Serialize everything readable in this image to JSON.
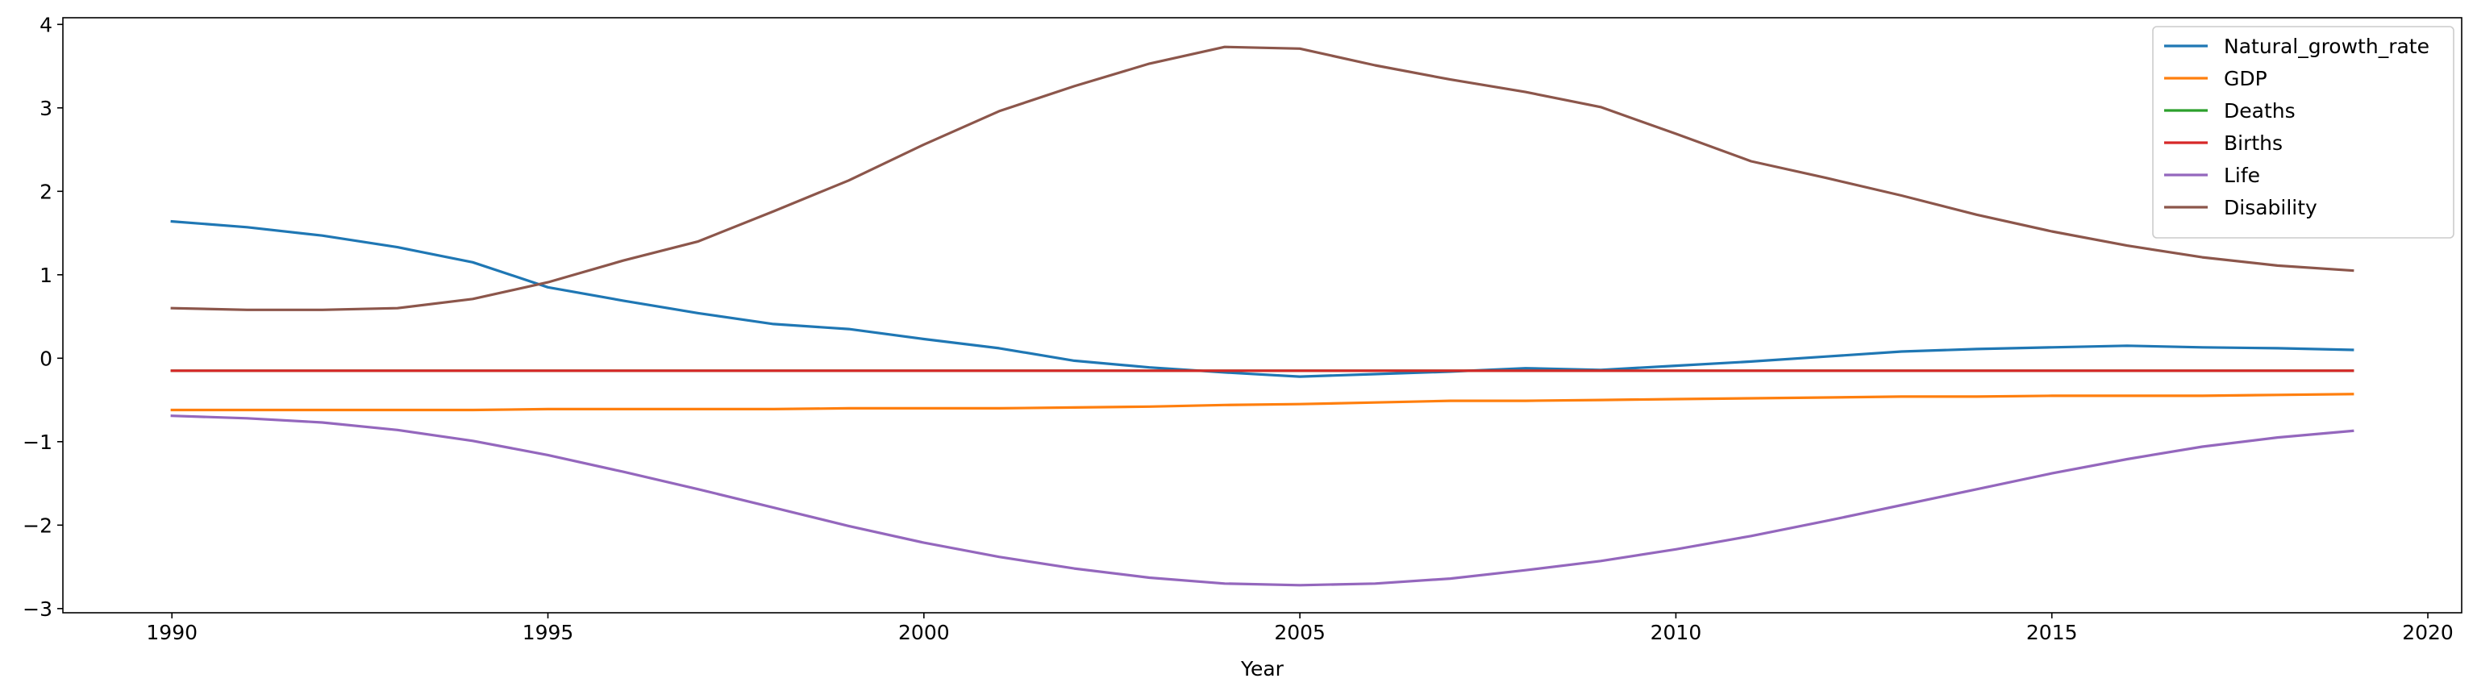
{
  "chart_data": {
    "type": "line",
    "title": "",
    "xlabel": "Year",
    "ylabel": "",
    "xlim": [
      1988.55,
      2020.45
    ],
    "ylim": [
      -3.05,
      4.08
    ],
    "xticks": [
      1990,
      1995,
      2000,
      2005,
      2010,
      2015,
      2020
    ],
    "yticks": [
      -3,
      -2,
      -1,
      0,
      1,
      2,
      3,
      4
    ],
    "ytick_labels": [
      "−3",
      "−2",
      "−1",
      "0",
      "1",
      "2",
      "3",
      "4"
    ],
    "grid": false,
    "legend_position": "upper-right",
    "x": [
      1990,
      1991,
      1992,
      1993,
      1994,
      1995,
      1996,
      1997,
      1998,
      1999,
      2000,
      2001,
      2002,
      2003,
      2004,
      2005,
      2006,
      2007,
      2008,
      2009,
      2010,
      2011,
      2012,
      2013,
      2014,
      2015,
      2016,
      2017,
      2018,
      2019
    ],
    "series": [
      {
        "name": "Natural_growth_rate",
        "color": "#1f77b4",
        "values": [
          1.64,
          1.57,
          1.47,
          1.33,
          1.15,
          0.85,
          0.69,
          0.54,
          0.41,
          0.35,
          0.23,
          0.12,
          -0.03,
          -0.11,
          -0.17,
          -0.22,
          -0.19,
          -0.16,
          -0.12,
          -0.14,
          -0.09,
          -0.04,
          0.02,
          0.08,
          0.11,
          0.13,
          0.15,
          0.13,
          0.12,
          0.1
        ]
      },
      {
        "name": "GDP",
        "color": "#ff7f0e",
        "values": [
          -0.62,
          -0.62,
          -0.62,
          -0.62,
          -0.62,
          -0.61,
          -0.61,
          -0.61,
          -0.61,
          -0.6,
          -0.6,
          -0.6,
          -0.59,
          -0.58,
          -0.56,
          -0.55,
          -0.53,
          -0.51,
          -0.51,
          -0.5,
          -0.49,
          -0.48,
          -0.47,
          -0.46,
          -0.46,
          -0.45,
          -0.45,
          -0.45,
          -0.44,
          -0.43
        ]
      },
      {
        "name": "Deaths",
        "color": "#2ca02c",
        "values": [
          -0.15,
          -0.15,
          -0.15,
          -0.15,
          -0.15,
          -0.15,
          -0.15,
          -0.15,
          -0.15,
          -0.15,
          -0.15,
          -0.15,
          -0.15,
          -0.15,
          -0.15,
          -0.15,
          -0.15,
          -0.15,
          -0.15,
          -0.15,
          -0.15,
          -0.15,
          -0.15,
          -0.15,
          -0.15,
          -0.15,
          -0.15,
          -0.15,
          -0.15,
          -0.15
        ]
      },
      {
        "name": "Births",
        "color": "#d62728",
        "values": [
          -0.15,
          -0.15,
          -0.15,
          -0.15,
          -0.15,
          -0.15,
          -0.15,
          -0.15,
          -0.15,
          -0.15,
          -0.15,
          -0.15,
          -0.15,
          -0.15,
          -0.15,
          -0.15,
          -0.15,
          -0.15,
          -0.15,
          -0.15,
          -0.15,
          -0.15,
          -0.15,
          -0.15,
          -0.15,
          -0.15,
          -0.15,
          -0.15,
          -0.15,
          -0.15
        ]
      },
      {
        "name": "Life",
        "color": "#9467bd",
        "values": [
          -0.69,
          -0.72,
          -0.77,
          -0.86,
          -0.99,
          -1.16,
          -1.36,
          -1.57,
          -1.79,
          -2.01,
          -2.21,
          -2.38,
          -2.52,
          -2.63,
          -2.7,
          -2.72,
          -2.7,
          -2.64,
          -2.54,
          -2.43,
          -2.29,
          -2.13,
          -1.95,
          -1.76,
          -1.57,
          -1.38,
          -1.21,
          -1.06,
          -0.95,
          -0.87
        ]
      },
      {
        "name": "Disability",
        "color": "#8c564b",
        "values": [
          0.6,
          0.58,
          0.58,
          0.6,
          0.71,
          0.91,
          1.17,
          1.4,
          1.76,
          2.13,
          2.56,
          2.96,
          3.26,
          3.53,
          3.73,
          3.71,
          3.51,
          3.34,
          3.19,
          3.01,
          2.69,
          2.36,
          2.16,
          1.95,
          1.72,
          1.52,
          1.35,
          1.21,
          1.11,
          1.05
        ]
      }
    ]
  }
}
